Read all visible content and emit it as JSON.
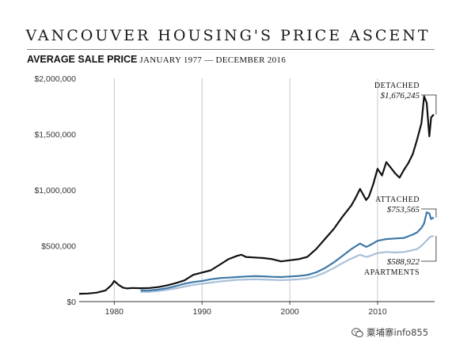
{
  "chart_data": {
    "type": "line",
    "title": "VANCOUVER HOUSING'S PRICE ASCENT",
    "subtitle": "AVERAGE SALE PRICE",
    "subtitle_range": "JANUARY 1977 — DECEMBER 2016",
    "xlabel": "",
    "ylabel": "",
    "xlim": [
      1976,
      2016.5
    ],
    "ylim": [
      0,
      2000000
    ],
    "x_ticks": [
      1980,
      1990,
      2000,
      2010
    ],
    "y_ticks": [
      0,
      500000,
      1000000,
      1500000,
      2000000
    ],
    "y_tick_labels": [
      "$0",
      "$500,000",
      "$1,000,000",
      "$1,500,000",
      "$2,000,000"
    ],
    "grid": "vertical",
    "colors": {
      "detached": "#111111",
      "attached": "#3e78a8",
      "apartments": "#a9c0d8"
    },
    "series": [
      {
        "name": "DETACHED",
        "annotation": "$1,676,245",
        "x": [
          1976.0,
          1977,
          1978,
          1979,
          1979.7,
          1980.0,
          1980.5,
          1981.0,
          1981.5,
          1982,
          1983,
          1984,
          1985,
          1986,
          1987,
          1988,
          1989,
          1990,
          1991,
          1992,
          1993,
          1994,
          1994.5,
          1995,
          1996,
          1997,
          1998,
          1999,
          2000,
          2001,
          2002,
          2003,
          2004,
          2005,
          2006,
          2007,
          2007.5,
          2008,
          2008.7,
          2009,
          2009.5,
          2010,
          2010.5,
          2011,
          2011.5,
          2012,
          2012.5,
          2013,
          2013.5,
          2014,
          2014.5,
          2015,
          2015.3,
          2015.6,
          2015.9,
          2016.1,
          2016.4
        ],
        "y": [
          70000,
          72000,
          80000,
          100000,
          150000,
          185000,
          150000,
          125000,
          118000,
          122000,
          120000,
          122000,
          130000,
          145000,
          165000,
          190000,
          240000,
          260000,
          280000,
          330000,
          380000,
          410000,
          420000,
          400000,
          395000,
          390000,
          380000,
          360000,
          370000,
          380000,
          400000,
          470000,
          560000,
          650000,
          760000,
          860000,
          930000,
          1010000,
          910000,
          940000,
          1050000,
          1190000,
          1130000,
          1250000,
          1200000,
          1150000,
          1110000,
          1180000,
          1240000,
          1320000,
          1450000,
          1600000,
          1840000,
          1780000,
          1480000,
          1650000,
          1676245
        ]
      },
      {
        "name": "ATTACHED",
        "annotation": "$753,565",
        "x": [
          1983,
          1984,
          1985,
          1986,
          1987,
          1988,
          1989,
          1990,
          1991,
          1992,
          1993,
          1994,
          1995,
          1996,
          1997,
          1998,
          1999,
          2000,
          2001,
          2002,
          2003,
          2004,
          2005,
          2006,
          2007,
          2008,
          2008.7,
          2009,
          2010,
          2011,
          2012,
          2013,
          2014,
          2014.5,
          2015,
          2015.3,
          2015.6,
          2015.9,
          2016.1,
          2016.4
        ],
        "y": [
          100000,
          100000,
          108000,
          120000,
          138000,
          160000,
          175000,
          185000,
          200000,
          210000,
          215000,
          220000,
          225000,
          228000,
          226000,
          222000,
          220000,
          225000,
          230000,
          238000,
          262000,
          300000,
          350000,
          410000,
          470000,
          520000,
          490000,
          500000,
          545000,
          560000,
          565000,
          570000,
          600000,
          620000,
          660000,
          700000,
          800000,
          790000,
          740000,
          753565
        ]
      },
      {
        "name": "APARTMENTS",
        "annotation": "$588,922",
        "x": [
          1983,
          1984,
          1985,
          1986,
          1987,
          1988,
          1989,
          1990,
          1991,
          1992,
          1993,
          1994,
          1995,
          1996,
          1997,
          1998,
          1999,
          2000,
          2001,
          2002,
          2003,
          2004,
          2005,
          2006,
          2007,
          2008,
          2008.7,
          2009,
          2010,
          2011,
          2012,
          2013,
          2014,
          2014.5,
          2015,
          2015.5,
          2016.0,
          2016.4
        ],
        "y": [
          85000,
          88000,
          95000,
          105000,
          118000,
          135000,
          150000,
          160000,
          170000,
          180000,
          188000,
          195000,
          198000,
          200000,
          198000,
          195000,
          192000,
          195000,
          200000,
          208000,
          228000,
          260000,
          300000,
          345000,
          385000,
          420000,
          400000,
          405000,
          435000,
          445000,
          440000,
          445000,
          460000,
          470000,
          500000,
          540000,
          580000,
          588922
        ]
      }
    ]
  },
  "watermark": {
    "text": "粟埔寨info855",
    "icon": "wechat-icon"
  }
}
